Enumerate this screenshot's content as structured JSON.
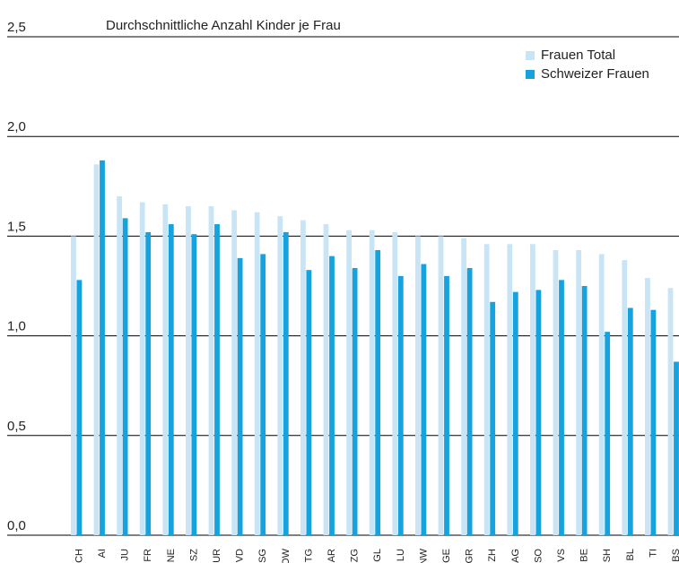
{
  "chart_data": {
    "type": "bar",
    "title": "Durchschnittliche Anzahl Kinder je Frau",
    "categories": [
      "CH",
      "AI",
      "JU",
      "FR",
      "NE",
      "SZ",
      "UR",
      "VD",
      "SG",
      "OW",
      "TG",
      "AR",
      "ZG",
      "GL",
      "LU",
      "NW",
      "GE",
      "GR",
      "ZH",
      "AG",
      "SO",
      "VS",
      "BE",
      "SH",
      "BL",
      "TI",
      "BS"
    ],
    "series": [
      {
        "name": "Frauen Total",
        "color": "#c9e5f5",
        "values": [
          1.5,
          1.86,
          1.7,
          1.67,
          1.66,
          1.65,
          1.65,
          1.63,
          1.62,
          1.6,
          1.58,
          1.56,
          1.53,
          1.53,
          1.52,
          1.5,
          1.5,
          1.49,
          1.46,
          1.46,
          1.46,
          1.43,
          1.43,
          1.41,
          1.38,
          1.29,
          1.24
        ]
      },
      {
        "name": "Schweizer Frauen",
        "color": "#16a2de",
        "values": [
          1.28,
          1.88,
          1.59,
          1.52,
          1.56,
          1.51,
          1.56,
          1.39,
          1.41,
          1.52,
          1.33,
          1.4,
          1.34,
          1.43,
          1.3,
          1.36,
          1.3,
          1.34,
          1.17,
          1.22,
          1.23,
          1.28,
          1.25,
          1.02,
          1.14,
          1.13,
          0.87
        ]
      }
    ],
    "ylim": [
      0,
      2.5
    ],
    "yticks": [
      {
        "value": 0,
        "label": "0,0"
      },
      {
        "value": 0.5,
        "label": "0,5"
      },
      {
        "value": 1,
        "label": "1,0"
      },
      {
        "value": 1.5,
        "label": "1,5"
      },
      {
        "value": 2,
        "label": "2,0"
      },
      {
        "value": 2.5,
        "label": "2,5"
      }
    ],
    "grid": true,
    "legend": "top-right"
  }
}
